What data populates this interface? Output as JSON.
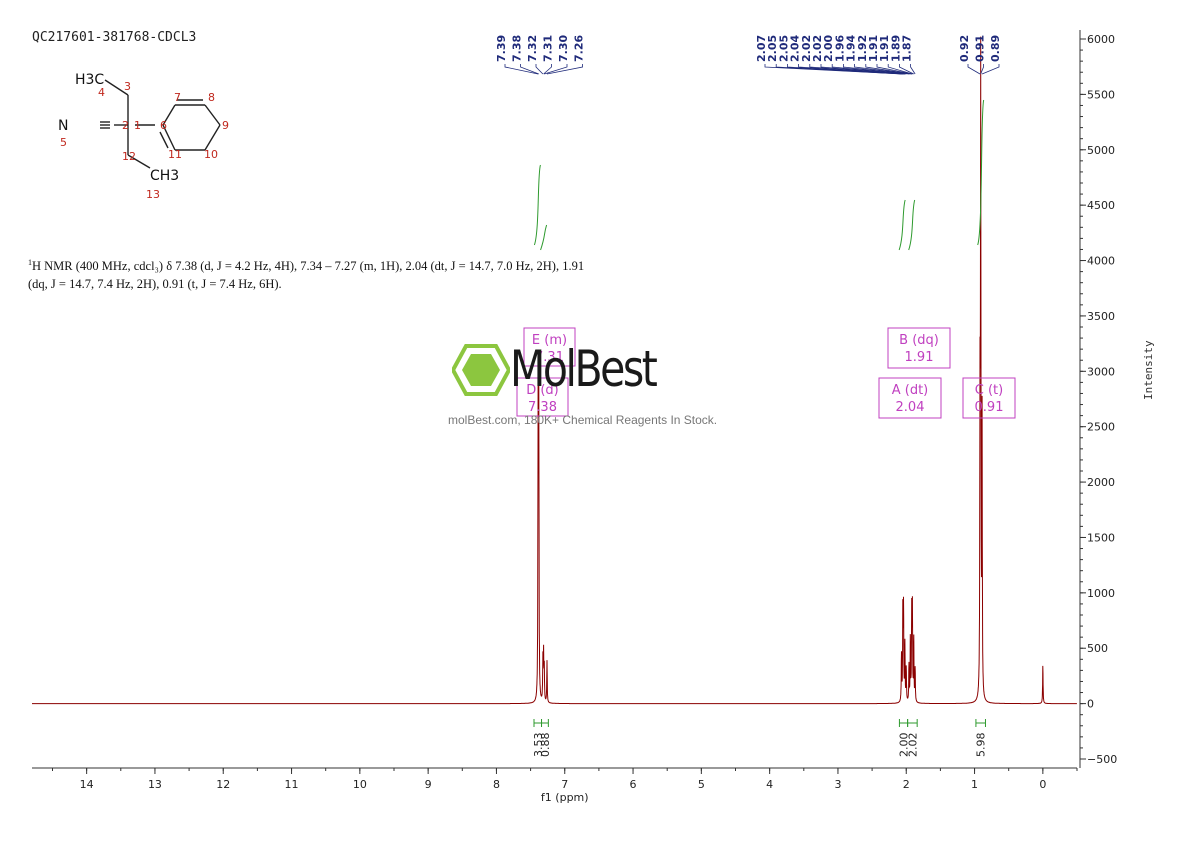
{
  "header": {
    "sample_id": "QC217601-381768-CDCL3",
    "nmr_text_sup": "1",
    "nmr_text": "H NMR (400 MHz, cdcl₃) δ 7.38 (d, J = 4.2 Hz, 4H), 7.34 – 7.27 (m, 1H), 2.04 (dt, J = 14.7, 7.0 Hz, 2H), 1.91 (dq, J = 14.7, 7.4 Hz, 2H), 0.91 (t, J = 7.4 Hz, 6H)."
  },
  "watermark": {
    "word": "MolBest",
    "tagline": "molBest.com, 180K+ Chemical Reagents In Stock.",
    "color": "#8cc63f"
  },
  "molecule": {
    "atoms": [
      "H3C",
      "N",
      "CH3"
    ],
    "numbers": [
      "1",
      "2",
      "3",
      "4",
      "5",
      "6",
      "7",
      "8",
      "9",
      "10",
      "11",
      "12",
      "13"
    ],
    "number_color": "#c0281e"
  },
  "colors": {
    "spectrum": "#8b0000",
    "integral": "#2e9a2e",
    "peak_label": "#1f2a7a",
    "box": "#c040c0"
  },
  "chart_data": {
    "type": "line",
    "title": "",
    "xlabel": "f1 (ppm)",
    "ylabel": "Intensity",
    "xlim": [
      14.8,
      -0.5
    ],
    "ylim": [
      -600,
      6100
    ],
    "x_ticks": [
      14,
      13,
      12,
      11,
      10,
      9,
      8,
      7,
      6,
      5,
      4,
      3,
      2,
      1,
      0
    ],
    "y_ticks": [
      6000,
      5500,
      5000,
      4500,
      4000,
      3500,
      3000,
      2500,
      2000,
      1500,
      1000,
      500,
      0,
      -500
    ],
    "peaks": [
      {
        "ppm": 7.39,
        "height": 2550
      },
      {
        "ppm": 7.38,
        "height": 2600
      },
      {
        "ppm": 7.32,
        "height": 380
      },
      {
        "ppm": 7.31,
        "height": 420
      },
      {
        "ppm": 7.3,
        "height": 300
      },
      {
        "ppm": 7.26,
        "height": 380
      },
      {
        "ppm": 2.07,
        "height": 420
      },
      {
        "ppm": 2.05,
        "height": 800
      },
      {
        "ppm": 2.04,
        "height": 820
      },
      {
        "ppm": 2.02,
        "height": 520
      },
      {
        "ppm": 2.0,
        "height": 300
      },
      {
        "ppm": 1.96,
        "height": 330
      },
      {
        "ppm": 1.94,
        "height": 560
      },
      {
        "ppm": 1.92,
        "height": 800
      },
      {
        "ppm": 1.91,
        "height": 820
      },
      {
        "ppm": 1.89,
        "height": 560
      },
      {
        "ppm": 1.87,
        "height": 300
      },
      {
        "ppm": 0.92,
        "height": 2500
      },
      {
        "ppm": 0.91,
        "height": 5580
      },
      {
        "ppm": 0.89,
        "height": 2520
      },
      {
        "ppm": 0.0,
        "height": 340
      }
    ],
    "peak_labels": {
      "group1": [
        "7.39",
        "7.38",
        "7.32",
        "7.31",
        "7.30",
        "7.26"
      ],
      "group2": [
        "2.07",
        "2.05",
        "2.05",
        "2.04",
        "2.02",
        "2.02",
        "2.00",
        "1.96",
        "1.94",
        "1.92",
        "1.91",
        "1.91",
        "1.89",
        "1.87"
      ],
      "group3": [
        "0.92",
        "0.91",
        "0.89"
      ]
    },
    "multiplets": [
      {
        "id": "E",
        "mult": "(m)",
        "shift": "7.31"
      },
      {
        "id": "D",
        "mult": "(d)",
        "shift": "7.38"
      },
      {
        "id": "B",
        "mult": "(dq)",
        "shift": "1.91"
      },
      {
        "id": "A",
        "mult": "(dt)",
        "shift": "2.04"
      },
      {
        "id": "C",
        "mult": "(t)",
        "shift": "0.91"
      }
    ],
    "integrals": [
      {
        "range": [
          7.45,
          7.34
        ],
        "value": "3.53"
      },
      {
        "range": [
          7.34,
          7.24
        ],
        "value": "0.88"
      },
      {
        "range": [
          2.1,
          1.98
        ],
        "value": "2.00"
      },
      {
        "range": [
          1.98,
          1.84
        ],
        "value": "2.02"
      },
      {
        "range": [
          0.98,
          0.84
        ],
        "value": "5.98"
      }
    ]
  }
}
